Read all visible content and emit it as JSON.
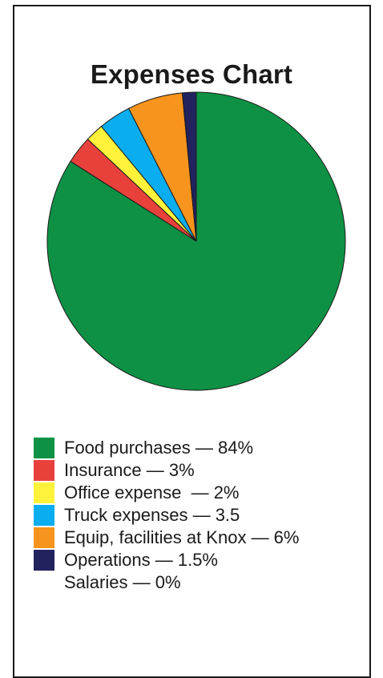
{
  "chart_data": {
    "type": "pie",
    "title": "Expenses Chart",
    "slices": [
      {
        "label": "Food purchases",
        "value": 84,
        "legend_text": "Food purchases — 84%",
        "color": "#0e9144"
      },
      {
        "label": "Insurance",
        "value": 3,
        "legend_text": "Insurance — 3%",
        "color": "#e8413c"
      },
      {
        "label": "Office expense",
        "value": 2,
        "legend_text": "Office expense  — 2%",
        "color": "#fff23a"
      },
      {
        "label": "Truck expenses",
        "value": 3.5,
        "legend_text": "Truck expenses — 3.5",
        "color": "#0aaef0"
      },
      {
        "label": "Equip, facilities at Knox",
        "value": 6,
        "legend_text": "Equip, facilities at Knox — 6%",
        "color": "#f7941d"
      },
      {
        "label": "Operations",
        "value": 1.5,
        "legend_text": "Operations — 1.5%",
        "color": "#22225e"
      },
      {
        "label": "Salaries",
        "value": 0,
        "legend_text": "Salaries — 0%",
        "color": "#ffffff"
      }
    ],
    "legend_placement": "bottom",
    "start": "top, clockwise"
  }
}
